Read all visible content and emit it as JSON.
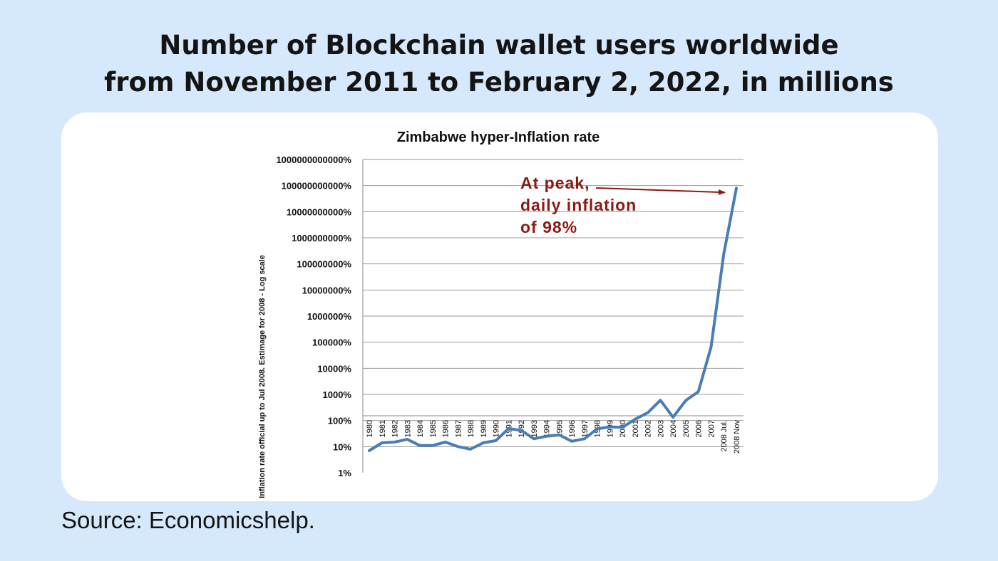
{
  "page": {
    "title_line1": "Number of Blockchain wallet users worldwide",
    "title_line2": "from November 2011 to February 2, 2022, in millions",
    "source": "Source: Economicshelp."
  },
  "colors": {
    "background": "#d6e8fb",
    "line": "#4a7db5",
    "annotation": "#8b1a14"
  },
  "chart_data": {
    "type": "line",
    "title": "Zimbabwe hyper-Inflation rate",
    "ylabel": "Inflation rate official up to Jul 2008. Estimage for 2008 - Log scale",
    "xlabel": "",
    "yscale": "log",
    "ylim": [
      1,
      1000000000000
    ],
    "ytick_labels": [
      "1%",
      "10%",
      "100%",
      "1000%",
      "10000%",
      "100000%",
      "1000000%",
      "10000000%",
      "100000000%",
      "1000000000%",
      "10000000000%",
      "100000000000%",
      "1000000000000%"
    ],
    "categories": [
      "1980",
      "1981",
      "1982",
      "1983",
      "1984",
      "1985",
      "1986",
      "1987",
      "1988",
      "1989",
      "1990",
      "1991",
      "1992",
      "1993",
      "1994",
      "1995",
      "1996",
      "1997",
      "1998",
      "1999",
      "2000",
      "2001",
      "2002",
      "2003",
      "2004",
      "2005",
      "2006",
      "2007",
      "2008 Jul.",
      "2008 Nov"
    ],
    "series": [
      {
        "name": "Inflation rate",
        "values": [
          7,
          14,
          15,
          19,
          11,
          11,
          15,
          10,
          8,
          14,
          17,
          49,
          42,
          20,
          25,
          28,
          16,
          20,
          48,
          57,
          55,
          112,
          199,
          599,
          133,
          585,
          1281,
          66000,
          231000000,
          79600000000
        ]
      }
    ],
    "annotation": {
      "lines": [
        "At peak,",
        "daily inflation",
        "of 98%"
      ],
      "points_to": "2008 Nov"
    }
  }
}
